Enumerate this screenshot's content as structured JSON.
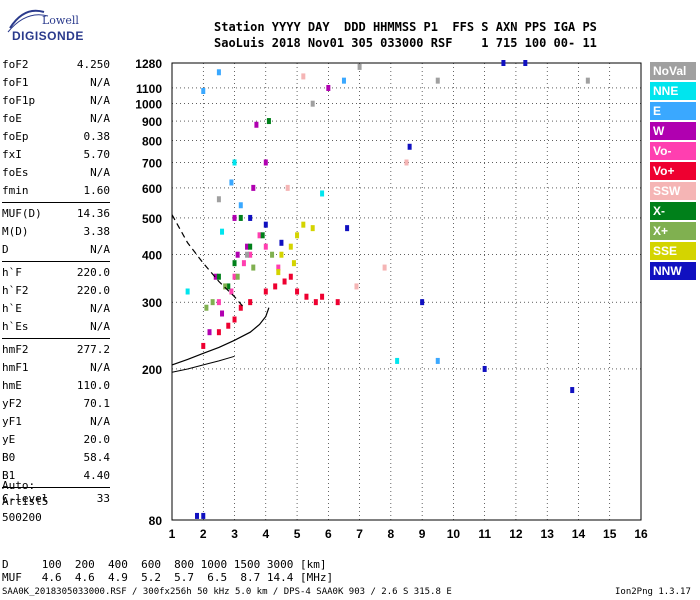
{
  "logo": {
    "line1": "Lowell",
    "line2": "DIGISONDE"
  },
  "header": {
    "line1": "Station YYYY DAY  DDD HHMMSS P1  FFS S AXN PPS IGA PS",
    "line2": "SaoLuis 2018 Nov01 305 033000 RSF    1 715 100 00- 11"
  },
  "params": {
    "group1": [
      {
        "label": "foF2",
        "value": "4.250"
      },
      {
        "label": "foF1",
        "value": "N/A"
      },
      {
        "label": "foF1p",
        "value": "N/A"
      },
      {
        "label": "foE",
        "value": "N/A"
      },
      {
        "label": "foEp",
        "value": "0.38"
      },
      {
        "label": "fxI",
        "value": "5.70"
      },
      {
        "label": "foEs",
        "value": "N/A"
      },
      {
        "label": "fmin",
        "value": "1.60"
      }
    ],
    "group2": [
      {
        "label": "MUF(D)",
        "value": "14.36"
      },
      {
        "label": "M(D)",
        "value": "3.38"
      },
      {
        "label": "D",
        "value": "N/A"
      }
    ],
    "group3": [
      {
        "label": "h`F",
        "value": "220.0"
      },
      {
        "label": "h`F2",
        "value": "220.0"
      },
      {
        "label": "h`E",
        "value": "N/A"
      },
      {
        "label": "h`Es",
        "value": "N/A"
      }
    ],
    "group4": [
      {
        "label": "hmF2",
        "value": "277.2"
      },
      {
        "label": "hmF1",
        "value": "N/A"
      },
      {
        "label": "hmE",
        "value": "110.0"
      },
      {
        "label": "yF2",
        "value": "70.1"
      },
      {
        "label": "yF1",
        "value": "N/A"
      },
      {
        "label": "yE",
        "value": "20.0"
      },
      {
        "label": "B0",
        "value": "58.4"
      },
      {
        "label": "B1",
        "value": "4.40"
      }
    ],
    "group5": [
      {
        "label": "C-level",
        "value": "33"
      }
    ]
  },
  "auto": {
    "line1": "Auto:",
    "line2": "Artist5",
    "line3": "500200"
  },
  "bottom": {
    "d_row": "D     100  200  400  600  800 1000 1500 3000 [km]",
    "muf_row": "MUF   4.6  4.6  4.9  5.2  5.7  6.5  8.7 14.4 [MHz]",
    "footer_left": "SAA0K_2018305033000.RSF / 300fx256h 50 kHz 5.0 km / DPS-4 SAA0K 903 / 2.6 S 315.8 E",
    "footer_right": "Ion2Png 1.3.17"
  },
  "legend": [
    {
      "label": "NoVal",
      "color": "#a0a0a0"
    },
    {
      "label": "NNE",
      "color": "#00e5ee"
    },
    {
      "label": "E",
      "color": "#3aa8ff"
    },
    {
      "label": "W",
      "color": "#b000b0"
    },
    {
      "label": "Vo-",
      "color": "#ff3fb0"
    },
    {
      "label": "Vo+",
      "color": "#ee0030"
    },
    {
      "label": "SSW",
      "color": "#f5b5b5"
    },
    {
      "label": "X-",
      "color": "#00801a"
    },
    {
      "label": "X+",
      "color": "#80b050"
    },
    {
      "label": "SSE",
      "color": "#d4d400"
    },
    {
      "label": "NNW",
      "color": "#1010c0"
    }
  ],
  "chart_data": {
    "type": "scatter",
    "xlabel": "",
    "ylabel": "",
    "xlim": [
      1,
      16
    ],
    "ylim": [
      80,
      1280
    ],
    "y_scale": "log",
    "x_ticks": [
      1,
      2,
      3,
      4,
      5,
      6,
      7,
      8,
      9,
      10,
      11,
      12,
      13,
      14,
      15,
      16
    ],
    "y_ticks": [
      80,
      200,
      300,
      400,
      500,
      600,
      700,
      800,
      900,
      1000,
      1100,
      1280
    ],
    "grid": true,
    "clusters": [
      {
        "name": "Vo+",
        "points": [
          [
            2.0,
            230
          ],
          [
            2.5,
            250
          ],
          [
            3.0,
            270
          ],
          [
            3.5,
            300
          ],
          [
            4.0,
            320
          ],
          [
            4.3,
            330
          ],
          [
            4.6,
            340
          ],
          [
            5.0,
            320
          ],
          [
            5.3,
            310
          ],
          [
            5.6,
            300
          ],
          [
            3.2,
            290
          ],
          [
            4.8,
            350
          ],
          [
            2.8,
            260
          ],
          [
            5.8,
            310
          ],
          [
            6.3,
            300
          ]
        ]
      },
      {
        "name": "Vo-",
        "points": [
          [
            2.5,
            300
          ],
          [
            3.0,
            350
          ],
          [
            3.5,
            400
          ],
          [
            4.0,
            420
          ],
          [
            3.8,
            450
          ],
          [
            3.3,
            380
          ],
          [
            4.4,
            370
          ],
          [
            2.9,
            320
          ]
        ]
      },
      {
        "name": "W",
        "points": [
          [
            2.2,
            250
          ],
          [
            2.6,
            280
          ],
          [
            3.1,
            400
          ],
          [
            3.4,
            420
          ],
          [
            3.6,
            600
          ],
          [
            2.4,
            350
          ],
          [
            3.0,
            500
          ],
          [
            4.0,
            700
          ],
          [
            6.0,
            1100
          ],
          [
            3.7,
            880
          ]
        ]
      },
      {
        "name": "SSE",
        "points": [
          [
            4.5,
            400
          ],
          [
            4.8,
            420
          ],
          [
            5.0,
            450
          ],
          [
            5.2,
            480
          ],
          [
            5.5,
            470
          ],
          [
            4.4,
            360
          ],
          [
            4.9,
            380
          ]
        ]
      },
      {
        "name": "X-",
        "points": [
          [
            2.5,
            350
          ],
          [
            3.0,
            380
          ],
          [
            3.5,
            420
          ],
          [
            3.9,
            450
          ],
          [
            2.8,
            330
          ],
          [
            3.2,
            500
          ],
          [
            4.1,
            900
          ]
        ]
      },
      {
        "name": "X+",
        "points": [
          [
            2.3,
            300
          ],
          [
            2.7,
            330
          ],
          [
            3.1,
            350
          ],
          [
            3.6,
            370
          ],
          [
            4.2,
            400
          ],
          [
            2.1,
            290
          ]
        ]
      },
      {
        "name": "NNW",
        "points": [
          [
            3.5,
            500
          ],
          [
            4.0,
            480
          ],
          [
            4.5,
            430
          ],
          [
            2.0,
            82
          ],
          [
            1.8,
            82
          ],
          [
            11.6,
            1280
          ],
          [
            8.6,
            770
          ],
          [
            9.0,
            300
          ],
          [
            13.8,
            176
          ],
          [
            11.0,
            200
          ],
          [
            12.3,
            1280
          ],
          [
            6.6,
            470
          ]
        ]
      },
      {
        "name": "E",
        "points": [
          [
            2.5,
            1210
          ],
          [
            2.0,
            1080
          ],
          [
            6.5,
            1150
          ],
          [
            9.5,
            210
          ],
          [
            3.2,
            540
          ],
          [
            2.9,
            620
          ]
        ]
      },
      {
        "name": "NNE",
        "points": [
          [
            5.8,
            580
          ],
          [
            2.6,
            460
          ],
          [
            8.2,
            210
          ],
          [
            3.0,
            700
          ],
          [
            1.5,
            320
          ]
        ]
      },
      {
        "name": "NoVal",
        "points": [
          [
            7.0,
            1250
          ],
          [
            5.5,
            1000
          ],
          [
            9.5,
            1150
          ],
          [
            14.3,
            1150
          ],
          [
            2.5,
            560
          ],
          [
            3.4,
            400
          ]
        ]
      },
      {
        "name": "SSW",
        "points": [
          [
            5.2,
            1180
          ],
          [
            8.5,
            700
          ],
          [
            7.8,
            370
          ],
          [
            6.9,
            330
          ],
          [
            4.7,
            600
          ]
        ]
      }
    ],
    "trace_curve": [
      [
        1.0,
        205
      ],
      [
        1.5,
        212
      ],
      [
        2.0,
        220
      ],
      [
        2.5,
        228
      ],
      [
        3.0,
        238
      ],
      [
        3.5,
        250
      ],
      [
        3.8,
        262
      ],
      [
        4.0,
        275
      ],
      [
        4.1,
        290
      ]
    ],
    "trace_dashed": [
      [
        1.0,
        510
      ],
      [
        1.5,
        430
      ],
      [
        2.0,
        380
      ],
      [
        2.5,
        340
      ],
      [
        3.0,
        310
      ],
      [
        3.3,
        290
      ]
    ],
    "trace_short": [
      [
        1.0,
        196
      ],
      [
        1.5,
        200
      ],
      [
        2.0,
        205
      ],
      [
        2.5,
        210
      ],
      [
        3.0,
        216
      ]
    ]
  }
}
